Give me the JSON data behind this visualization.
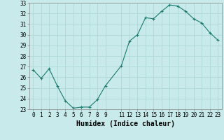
{
  "x": [
    0,
    1,
    2,
    3,
    4,
    5,
    6,
    7,
    8,
    9,
    11,
    12,
    13,
    14,
    15,
    16,
    17,
    18,
    19,
    20,
    21,
    22,
    23
  ],
  "y": [
    26.7,
    25.9,
    26.8,
    25.2,
    23.8,
    23.1,
    23.2,
    23.2,
    23.9,
    25.2,
    27.1,
    29.4,
    30.0,
    31.6,
    31.5,
    32.2,
    32.8,
    32.7,
    32.2,
    31.5,
    31.1,
    30.2,
    29.5
  ],
  "line_color": "#1a7a6e",
  "marker": "+",
  "marker_color": "#1a7a6e",
  "bg_color": "#c8eaea",
  "grid_color": "#b0d8d8",
  "xlabel": "Humidex (Indice chaleur)",
  "ylim": [
    23,
    33
  ],
  "yticks": [
    23,
    24,
    25,
    26,
    27,
    28,
    29,
    30,
    31,
    32,
    33
  ],
  "xticks": [
    0,
    1,
    2,
    3,
    4,
    5,
    6,
    7,
    8,
    9,
    11,
    12,
    13,
    14,
    15,
    16,
    17,
    18,
    19,
    20,
    21,
    22,
    23
  ],
  "xlim": [
    -0.5,
    23.5
  ],
  "tick_fontsize": 5.5,
  "xlabel_fontsize": 7
}
